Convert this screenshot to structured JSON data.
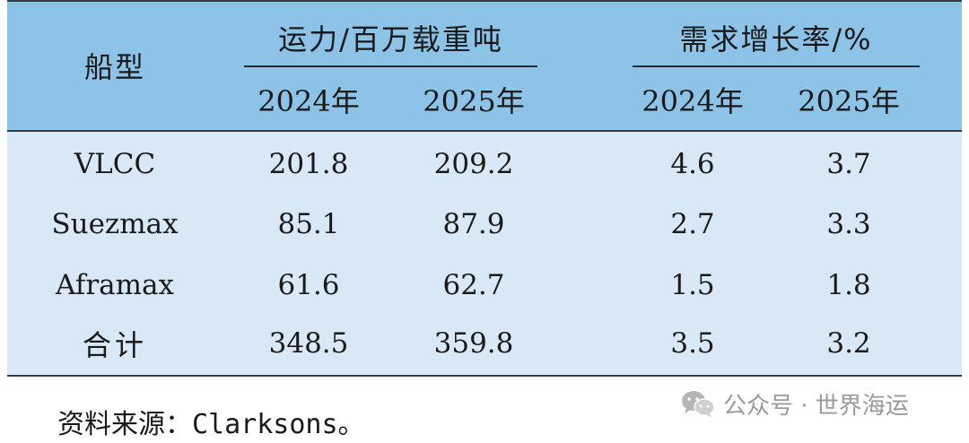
{
  "table": {
    "header": {
      "col_ship_type": "船型",
      "group_capacity": "运力/百万载重吨",
      "group_demand": "需求增长率/%",
      "year_2024": "2024年",
      "year_2025": "2025年"
    },
    "rows": [
      {
        "label": "VLCC",
        "cap2024": "201.8",
        "cap2025": "209.2",
        "dem2024": "4.6",
        "dem2025": "3.7"
      },
      {
        "label": "Suezmax",
        "cap2024": "85.1",
        "cap2025": "87.9",
        "dem2024": "2.7",
        "dem2025": "3.3"
      },
      {
        "label": "Aframax",
        "cap2024": "61.6",
        "cap2025": "62.7",
        "dem2024": "1.5",
        "dem2025": "1.8"
      },
      {
        "label": "合计",
        "cap2024": "348.5",
        "cap2025": "359.8",
        "dem2024": "3.5",
        "dem2025": "3.2"
      }
    ]
  },
  "source_note": "资料来源：Clarksons。",
  "watermark": {
    "icon": "wechat-icon",
    "text": "公众号 · 世界海运"
  },
  "colors": {
    "header_bg": "#8ec3e8",
    "body_bg": "#d9e8f6"
  }
}
